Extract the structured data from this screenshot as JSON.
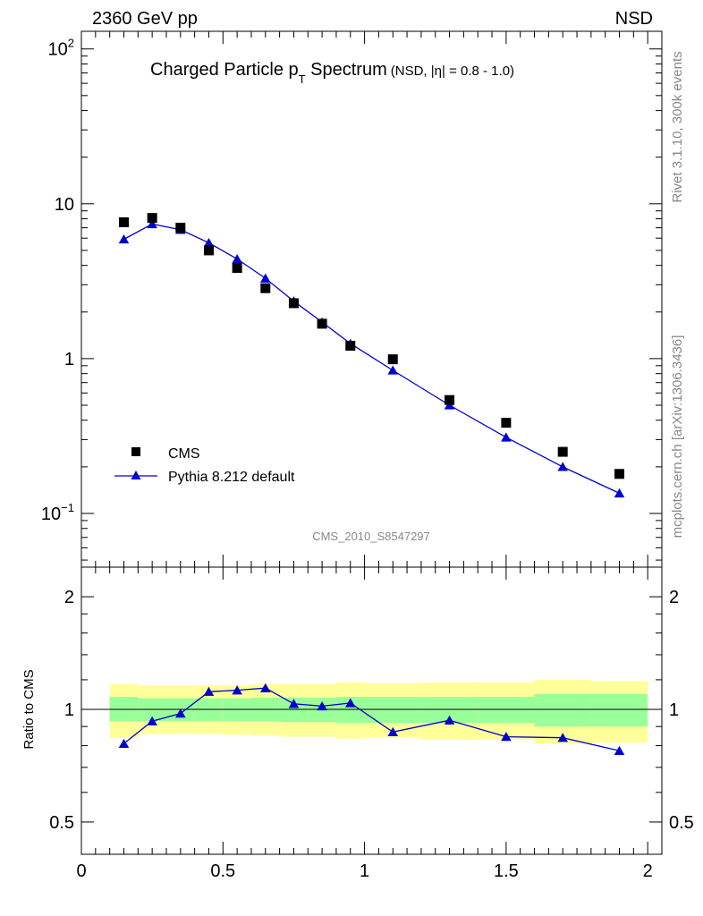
{
  "header": {
    "left": "2360 GeV pp",
    "right": "NSD"
  },
  "side_labels": {
    "rivet": "Rivet 3.1.10,  300k events",
    "mcplots": "mcplots.cern.ch [arXiv:1306.3436]"
  },
  "watermark": "CMS_2010_S8547297",
  "colors": {
    "mc": "#0000cc",
    "data": "#000000",
    "band_inner": "#99ff99",
    "band_outer": "#ffff99",
    "grey_text": "#888888"
  },
  "chart_data": [
    {
      "type": "scatter",
      "title": {
        "main": "Charged Particle p",
        "sub": "T",
        "after": " Spectrum",
        "note": "(NSD, |η| = 0.8 - 1.0)"
      },
      "yscale": "log",
      "ylim": [
        0.045,
        130
      ],
      "xlim": [
        0,
        2.05
      ],
      "y_ticks": [
        {
          "value": 0.1,
          "base": "10",
          "exp": "−1"
        },
        {
          "value": 1,
          "base": "1",
          "exp": ""
        },
        {
          "value": 10,
          "base": "10",
          "exp": ""
        },
        {
          "value": 100,
          "base": "10",
          "exp": "2"
        }
      ],
      "legend": {
        "position": "bottom-left",
        "entries": [
          "CMS",
          "Pythia 8.212 default"
        ]
      },
      "series": [
        {
          "name": "CMS",
          "style": "square-markers",
          "x": [
            0.15,
            0.25,
            0.35,
            0.45,
            0.55,
            0.65,
            0.75,
            0.85,
            0.95,
            1.1,
            1.3,
            1.5,
            1.7,
            1.9
          ],
          "y": [
            7.6,
            8.1,
            7.0,
            5.0,
            3.85,
            2.85,
            2.28,
            1.68,
            1.21,
            0.99,
            0.54,
            0.385,
            0.25,
            0.18
          ]
        },
        {
          "name": "Pythia 8.212 default",
          "style": "line-triangle-markers",
          "x": [
            0.15,
            0.25,
            0.35,
            0.45,
            0.55,
            0.65,
            0.75,
            0.85,
            0.95,
            1.1,
            1.3,
            1.5,
            1.7,
            1.9
          ],
          "y": [
            5.9,
            7.4,
            6.8,
            5.6,
            4.4,
            3.3,
            2.35,
            1.72,
            1.25,
            0.84,
            0.5,
            0.31,
            0.2,
            0.135
          ]
        }
      ]
    },
    {
      "type": "scatter",
      "ylabel": "Ratio to CMS",
      "yscale": "log",
      "ylim": [
        0.41,
        2.4
      ],
      "xlim": [
        0,
        2.05
      ],
      "y_ticks": [
        {
          "value": 0.5,
          "label": "0.5"
        },
        {
          "value": 1,
          "label": "1"
        },
        {
          "value": 2,
          "label": "2"
        }
      ],
      "x_ticks": [
        {
          "value": 0,
          "label": "0"
        },
        {
          "value": 0.5,
          "label": "0.5"
        },
        {
          "value": 1,
          "label": "1"
        },
        {
          "value": 1.5,
          "label": "1.5"
        },
        {
          "value": 2,
          "label": "2"
        }
      ],
      "bands": [
        {
          "x0": 0.1,
          "x1": 0.2,
          "inner": [
            0.93,
            1.08
          ],
          "outer": [
            0.84,
            1.17
          ]
        },
        {
          "x0": 0.2,
          "x1": 0.3,
          "inner": [
            0.93,
            1.07
          ],
          "outer": [
            0.86,
            1.16
          ]
        },
        {
          "x0": 0.3,
          "x1": 0.4,
          "inner": [
            0.93,
            1.07
          ],
          "outer": [
            0.86,
            1.16
          ]
        },
        {
          "x0": 0.4,
          "x1": 0.5,
          "inner": [
            0.93,
            1.07
          ],
          "outer": [
            0.86,
            1.16
          ]
        },
        {
          "x0": 0.5,
          "x1": 0.6,
          "inner": [
            0.93,
            1.07
          ],
          "outer": [
            0.855,
            1.16
          ]
        },
        {
          "x0": 0.6,
          "x1": 0.7,
          "inner": [
            0.93,
            1.075
          ],
          "outer": [
            0.85,
            1.17
          ]
        },
        {
          "x0": 0.7,
          "x1": 0.8,
          "inner": [
            0.925,
            1.075
          ],
          "outer": [
            0.845,
            1.17
          ]
        },
        {
          "x0": 0.8,
          "x1": 0.9,
          "inner": [
            0.925,
            1.075
          ],
          "outer": [
            0.845,
            1.17
          ]
        },
        {
          "x0": 0.9,
          "x1": 1.0,
          "inner": [
            0.92,
            1.08
          ],
          "outer": [
            0.835,
            1.18
          ]
        },
        {
          "x0": 1.0,
          "x1": 1.2,
          "inner": [
            0.92,
            1.08
          ],
          "outer": [
            0.84,
            1.175
          ]
        },
        {
          "x0": 1.2,
          "x1": 1.4,
          "inner": [
            0.92,
            1.08
          ],
          "outer": [
            0.83,
            1.18
          ]
        },
        {
          "x0": 1.4,
          "x1": 1.6,
          "inner": [
            0.92,
            1.08
          ],
          "outer": [
            0.83,
            1.18
          ]
        },
        {
          "x0": 1.6,
          "x1": 1.8,
          "inner": [
            0.9,
            1.1
          ],
          "outer": [
            0.81,
            1.2
          ]
        },
        {
          "x0": 1.8,
          "x1": 2.0,
          "inner": [
            0.9,
            1.1
          ],
          "outer": [
            0.815,
            1.19
          ]
        }
      ],
      "series": [
        {
          "name": "Pythia 8.212 default",
          "style": "line-triangle-markers",
          "x": [
            0.15,
            0.25,
            0.35,
            0.45,
            0.55,
            0.65,
            0.75,
            0.85,
            0.95,
            1.1,
            1.3,
            1.5,
            1.7,
            1.9
          ],
          "y": [
            0.81,
            0.93,
            0.975,
            1.115,
            1.125,
            1.14,
            1.035,
            1.02,
            1.04,
            0.87,
            0.935,
            0.845,
            0.84,
            0.775
          ]
        }
      ]
    }
  ]
}
